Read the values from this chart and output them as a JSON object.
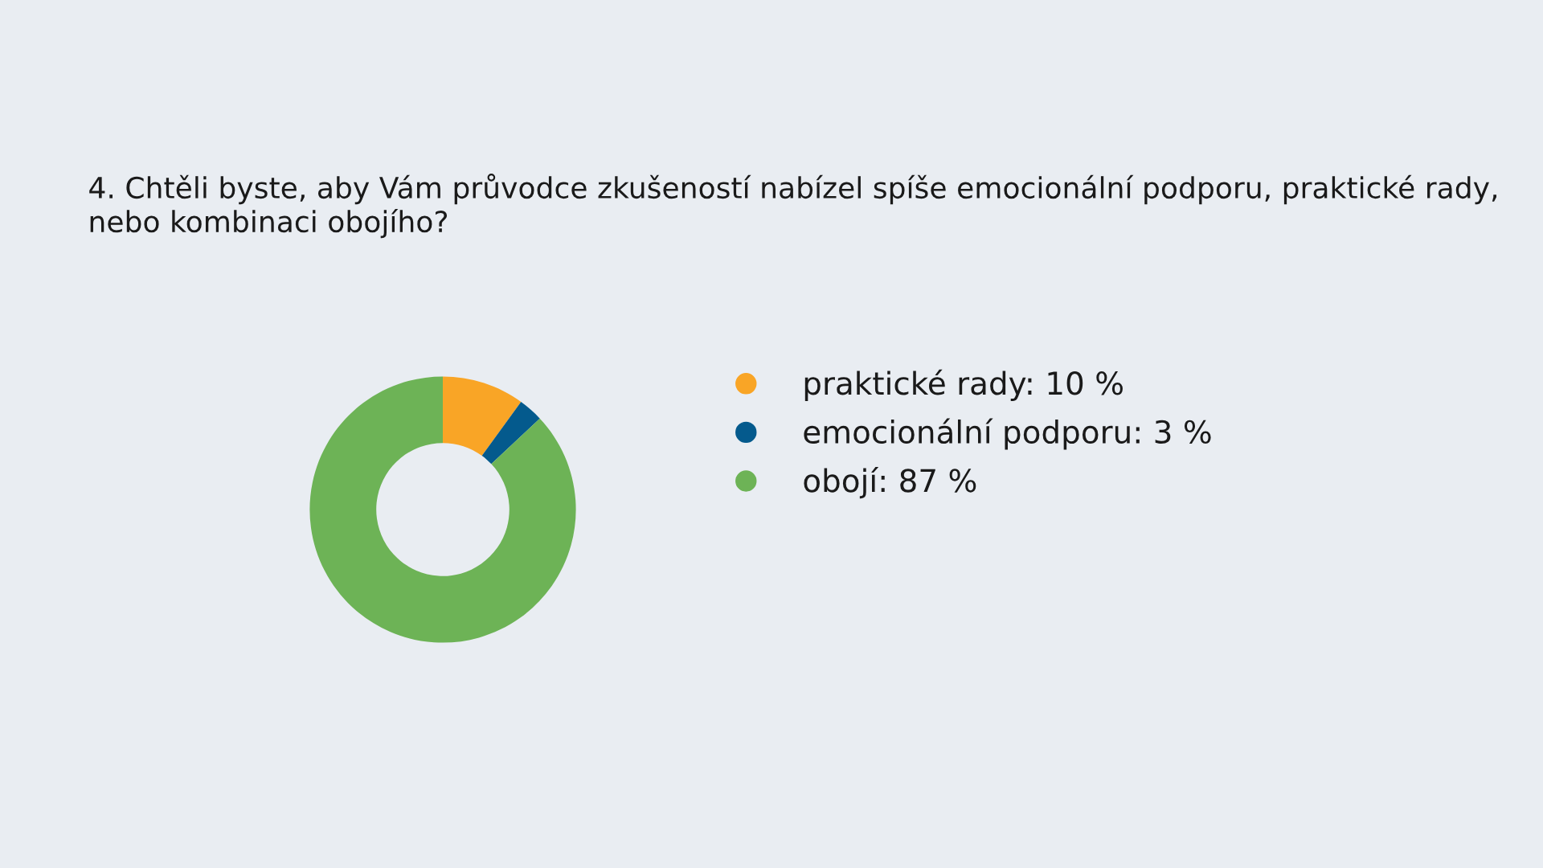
{
  "chart_data": {
    "type": "donut",
    "title": "4. Chtěli byste, aby Vám průvodce zkušeností nabízel spíše emocionální podporu, praktické rady, nebo kombinaci obojího?",
    "categories": [
      "praktické rady: 10 %",
      "emocionální podporu: 3 %",
      "obojí: 87 %"
    ],
    "values": [
      10,
      3,
      87
    ],
    "colors": [
      "#f9a526",
      "#045a8d",
      "#6db356"
    ],
    "legend": "right"
  }
}
